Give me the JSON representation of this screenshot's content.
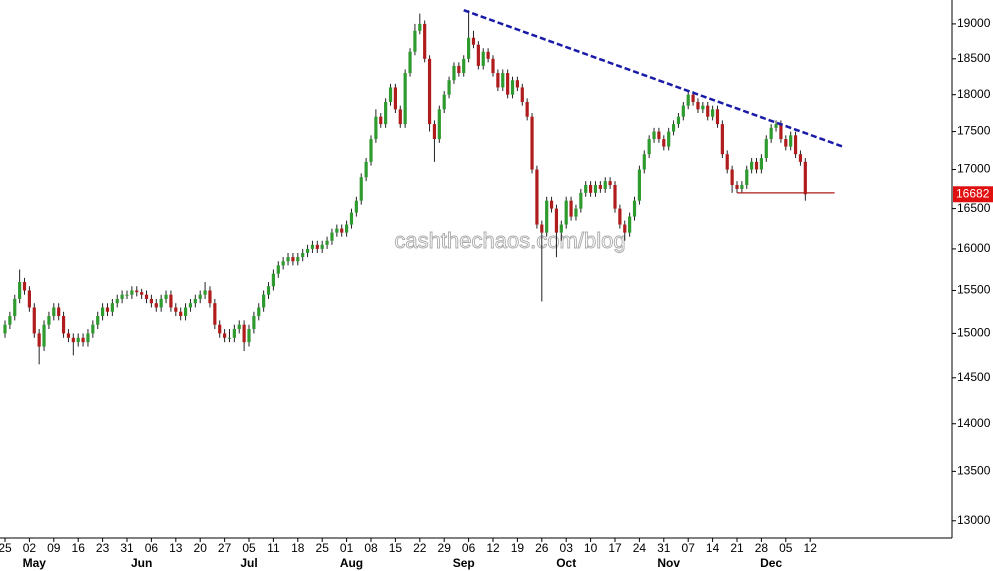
{
  "chart_data": {
    "type": "candlestick",
    "log_scale": true,
    "ylim": [
      12830,
      19350
    ],
    "yticks": [
      13000,
      13500,
      14000,
      14500,
      15000,
      15500,
      16000,
      16500,
      17000,
      17500,
      18000,
      18500,
      19000
    ],
    "up_color": "#2e9b2e",
    "down_color": "#b01c1c",
    "wick_color": "#222222",
    "watermark": "cashthechaos.com/blog",
    "last_value": 16682,
    "last_value_color": "#e01010",
    "trendlines": [
      {
        "color": "#1a1aa8",
        "style": "dashed",
        "points": [
          [
            94,
            19200
          ],
          [
            172,
            17293
          ]
        ]
      },
      {
        "color": "#b01c1c",
        "style": "solid",
        "points": [
          [
            150,
            16700
          ],
          [
            170,
            16700
          ]
        ]
      }
    ],
    "categories": [
      "25",
      null,
      null,
      null,
      null,
      "02",
      null,
      null,
      null,
      null,
      "09",
      null,
      null,
      null,
      null,
      "16",
      null,
      null,
      null,
      null,
      "23",
      null,
      null,
      null,
      null,
      "31",
      null,
      null,
      null,
      null,
      "06",
      null,
      null,
      null,
      null,
      "13",
      null,
      null,
      null,
      null,
      "20",
      null,
      null,
      null,
      null,
      "27",
      null,
      null,
      null,
      null,
      "05",
      null,
      null,
      null,
      null,
      "11",
      null,
      null,
      null,
      null,
      "18",
      null,
      null,
      null,
      null,
      "25",
      null,
      null,
      null,
      null,
      "01",
      null,
      null,
      null,
      null,
      "08",
      null,
      null,
      null,
      null,
      "15",
      null,
      null,
      null,
      null,
      "22",
      null,
      null,
      null,
      null,
      "29",
      null,
      null,
      null,
      null,
      "06",
      null,
      null,
      null,
      null,
      "12",
      null,
      null,
      null,
      null,
      "19",
      null,
      null,
      null,
      null,
      "26",
      null,
      null,
      null,
      null,
      "03",
      null,
      null,
      null,
      null,
      "10",
      null,
      null,
      null,
      null,
      "17",
      null,
      null,
      null,
      null,
      "24",
      null,
      null,
      null,
      null,
      "31",
      null,
      null,
      null,
      null,
      "07",
      null,
      null,
      null,
      null,
      "14",
      null,
      null,
      null,
      null,
      "21",
      null,
      null,
      null,
      null,
      "28",
      null,
      null,
      null,
      null,
      "05",
      null,
      null,
      null,
      null,
      "12",
      null,
      null,
      null,
      null
    ],
    "month_categories": [
      null,
      null,
      null,
      null,
      null,
      null,
      "May",
      null,
      null,
      null,
      null,
      null,
      null,
      null,
      null,
      null,
      null,
      null,
      null,
      null,
      null,
      null,
      null,
      null,
      null,
      null,
      null,
      null,
      "Jun",
      null,
      null,
      null,
      null,
      null,
      null,
      null,
      null,
      null,
      null,
      null,
      null,
      null,
      null,
      null,
      null,
      null,
      null,
      null,
      null,
      null,
      "Jul",
      null,
      null,
      null,
      null,
      null,
      null,
      null,
      null,
      null,
      null,
      null,
      null,
      null,
      null,
      null,
      null,
      null,
      null,
      null,
      null,
      "Aug",
      null,
      null,
      null,
      null,
      null,
      null,
      null,
      null,
      null,
      null,
      null,
      null,
      null,
      null,
      null,
      null,
      null,
      null,
      null,
      null,
      null,
      null,
      "Sep",
      null,
      null,
      null,
      null,
      null,
      null,
      null,
      null,
      null,
      null,
      null,
      null,
      null,
      null,
      null,
      null,
      null,
      null,
      null,
      null,
      "Oct",
      null,
      null,
      null,
      null,
      null,
      null,
      null,
      null,
      null,
      null,
      null,
      null,
      null,
      null,
      null,
      null,
      null,
      null,
      null,
      null,
      "Nov",
      null,
      null,
      null,
      null,
      null,
      null,
      null,
      null,
      null,
      null,
      null,
      null,
      null,
      null,
      null,
      null,
      null,
      null,
      null,
      null,
      "Dec",
      null,
      null,
      null,
      null,
      null,
      null,
      null,
      null,
      null,
      null
    ],
    "candles": [
      [
        15000,
        15150,
        14950,
        15100
      ],
      [
        15100,
        15250,
        15050,
        15200
      ],
      [
        15200,
        15450,
        15150,
        15400
      ],
      [
        15400,
        15750,
        15350,
        15600
      ],
      [
        15600,
        15650,
        15450,
        15500
      ],
      [
        15500,
        15550,
        15250,
        15300
      ],
      [
        15300,
        15350,
        14950,
        15000
      ],
      [
        15000,
        15050,
        14650,
        14850
      ],
      [
        14850,
        15150,
        14800,
        15100
      ],
      [
        15100,
        15250,
        15050,
        15200
      ],
      [
        15200,
        15350,
        15150,
        15300
      ],
      [
        15300,
        15350,
        15150,
        15200
      ],
      [
        15200,
        15250,
        14950,
        15000
      ],
      [
        15000,
        15050,
        14900,
        14950
      ],
      [
        14950,
        15000,
        14750,
        14900
      ],
      [
        14900,
        15000,
        14850,
        14950
      ],
      [
        14950,
        15000,
        14850,
        14900
      ],
      [
        14900,
        15050,
        14850,
        15000
      ],
      [
        15000,
        15150,
        14950,
        15100
      ],
      [
        15100,
        15250,
        15050,
        15200
      ],
      [
        15200,
        15350,
        15150,
        15300
      ],
      [
        15300,
        15350,
        15200,
        15250
      ],
      [
        15250,
        15400,
        15200,
        15350
      ],
      [
        15350,
        15450,
        15300,
        15400
      ],
      [
        15400,
        15500,
        15350,
        15450
      ],
      [
        15450,
        15500,
        15400,
        15450
      ],
      [
        15450,
        15550,
        15400,
        15500
      ],
      [
        15500,
        15550,
        15430,
        15480
      ],
      [
        15480,
        15520,
        15400,
        15450
      ],
      [
        15450,
        15500,
        15350,
        15400
      ],
      [
        15400,
        15450,
        15300,
        15350
      ],
      [
        15350,
        15400,
        15250,
        15300
      ],
      [
        15300,
        15450,
        15250,
        15400
      ],
      [
        15400,
        15500,
        15350,
        15450
      ],
      [
        15450,
        15500,
        15250,
        15300
      ],
      [
        15300,
        15350,
        15200,
        15250
      ],
      [
        15250,
        15300,
        15150,
        15200
      ],
      [
        15200,
        15350,
        15150,
        15300
      ],
      [
        15300,
        15400,
        15250,
        15350
      ],
      [
        15350,
        15450,
        15300,
        15400
      ],
      [
        15400,
        15500,
        15350,
        15450
      ],
      [
        15450,
        15600,
        15400,
        15500
      ],
      [
        15500,
        15550,
        15300,
        15350
      ],
      [
        15350,
        15400,
        15050,
        15100
      ],
      [
        15100,
        15150,
        14950,
        15000
      ],
      [
        15000,
        15050,
        14900,
        14950
      ],
      [
        14950,
        15050,
        14900,
        14950
      ],
      [
        14950,
        15100,
        14900,
        15050
      ],
      [
        15050,
        15150,
        15000,
        15100
      ],
      [
        15100,
        15150,
        14800,
        14900
      ],
      [
        14900,
        15100,
        14850,
        15050
      ],
      [
        15050,
        15250,
        15000,
        15200
      ],
      [
        15200,
        15350,
        15150,
        15300
      ],
      [
        15300,
        15500,
        15250,
        15450
      ],
      [
        15450,
        15600,
        15400,
        15550
      ],
      [
        15550,
        15750,
        15500,
        15700
      ],
      [
        15700,
        15850,
        15650,
        15800
      ],
      [
        15800,
        15900,
        15750,
        15850
      ],
      [
        15850,
        15950,
        15800,
        15900
      ],
      [
        15900,
        15950,
        15800,
        15850
      ],
      [
        15850,
        15950,
        15800,
        15900
      ],
      [
        15900,
        16000,
        15850,
        15950
      ],
      [
        15950,
        16050,
        15900,
        16000
      ],
      [
        16000,
        16100,
        15950,
        16050
      ],
      [
        16050,
        16100,
        15950,
        16000
      ],
      [
        16000,
        16100,
        15950,
        16050
      ],
      [
        16050,
        16150,
        16000,
        16100
      ],
      [
        16100,
        16250,
        16050,
        16200
      ],
      [
        16200,
        16300,
        16150,
        16250
      ],
      [
        16250,
        16300,
        16150,
        16200
      ],
      [
        16200,
        16350,
        16150,
        16300
      ],
      [
        16300,
        16500,
        16250,
        16450
      ],
      [
        16450,
        16650,
        16400,
        16600
      ],
      [
        16600,
        16950,
        16550,
        16900
      ],
      [
        16900,
        17150,
        16850,
        17100
      ],
      [
        17100,
        17450,
        17050,
        17400
      ],
      [
        17400,
        17800,
        17350,
        17700
      ],
      [
        17700,
        17750,
        17550,
        17600
      ],
      [
        17600,
        17950,
        17550,
        17900
      ],
      [
        17900,
        18150,
        17850,
        18100
      ],
      [
        18100,
        18150,
        17750,
        17800
      ],
      [
        17800,
        17850,
        17550,
        17600
      ],
      [
        17600,
        18350,
        17550,
        18300
      ],
      [
        18300,
        18650,
        18250,
        18600
      ],
      [
        18600,
        19000,
        18550,
        18900
      ],
      [
        18900,
        19150,
        18850,
        19000
      ],
      [
        19000,
        19050,
        18450,
        18500
      ],
      [
        18500,
        18550,
        17500,
        17600
      ],
      [
        17600,
        17650,
        17100,
        17400
      ],
      [
        17400,
        17850,
        17350,
        17800
      ],
      [
        17800,
        18050,
        17750,
        18000
      ],
      [
        18000,
        18250,
        17950,
        18200
      ],
      [
        18200,
        18450,
        18150,
        18400
      ],
      [
        18400,
        18450,
        18250,
        18300
      ],
      [
        18300,
        18550,
        18250,
        18500
      ],
      [
        18500,
        19200,
        18450,
        18800
      ],
      [
        18800,
        18900,
        18650,
        18700
      ],
      [
        18700,
        18750,
        18350,
        18400
      ],
      [
        18400,
        18650,
        18350,
        18600
      ],
      [
        18600,
        18650,
        18450,
        18500
      ],
      [
        18500,
        18550,
        18250,
        18300
      ],
      [
        18300,
        18350,
        18050,
        18100
      ],
      [
        18100,
        18350,
        18050,
        18300
      ],
      [
        18300,
        18350,
        17950,
        18000
      ],
      [
        18000,
        18250,
        17950,
        18200
      ],
      [
        18200,
        18250,
        18050,
        18100
      ],
      [
        18100,
        18150,
        17850,
        17900
      ],
      [
        17900,
        17950,
        17650,
        17700
      ],
      [
        17700,
        17750,
        16950,
        17000
      ],
      [
        17000,
        17050,
        16250,
        16300
      ],
      [
        16300,
        16350,
        15370,
        16200
      ],
      [
        16200,
        16650,
        16150,
        16600
      ],
      [
        16600,
        16650,
        16450,
        16500
      ],
      [
        16500,
        16550,
        15900,
        16200
      ],
      [
        16200,
        16350,
        16100,
        16300
      ],
      [
        16300,
        16650,
        16250,
        16600
      ],
      [
        16600,
        16650,
        16350,
        16400
      ],
      [
        16400,
        16550,
        16350,
        16500
      ],
      [
        16500,
        16750,
        16450,
        16700
      ],
      [
        16700,
        16850,
        16650,
        16800
      ],
      [
        16800,
        16850,
        16650,
        16700
      ],
      [
        16700,
        16850,
        16650,
        16800
      ],
      [
        16800,
        16850,
        16700,
        16750
      ],
      [
        16750,
        16900,
        16700,
        16850
      ],
      [
        16850,
        16900,
        16750,
        16800
      ],
      [
        16800,
        16850,
        16450,
        16500
      ],
      [
        16500,
        16550,
        16250,
        16300
      ],
      [
        16300,
        16350,
        16100,
        16200
      ],
      [
        16200,
        16450,
        16150,
        16400
      ],
      [
        16400,
        16650,
        16350,
        16600
      ],
      [
        16600,
        17050,
        16550,
        17000
      ],
      [
        17000,
        17250,
        16950,
        17200
      ],
      [
        17200,
        17450,
        17150,
        17400
      ],
      [
        17400,
        17550,
        17350,
        17500
      ],
      [
        17500,
        17550,
        17350,
        17400
      ],
      [
        17400,
        17450,
        17250,
        17300
      ],
      [
        17300,
        17550,
        17250,
        17500
      ],
      [
        17500,
        17650,
        17450,
        17600
      ],
      [
        17600,
        17750,
        17550,
        17700
      ],
      [
        17700,
        17900,
        17650,
        17850
      ],
      [
        17850,
        18050,
        17800,
        18000
      ],
      [
        18000,
        18050,
        17850,
        17900
      ],
      [
        17900,
        17950,
        17750,
        17800
      ],
      [
        17800,
        17900,
        17750,
        17850
      ],
      [
        17850,
        17900,
        17650,
        17700
      ],
      [
        17700,
        17850,
        17650,
        17800
      ],
      [
        17800,
        17850,
        17550,
        17600
      ],
      [
        17600,
        17650,
        17150,
        17200
      ],
      [
        17200,
        17250,
        16950,
        17000
      ],
      [
        17000,
        17050,
        16700,
        16800
      ],
      [
        16800,
        16850,
        16700,
        16750
      ],
      [
        16750,
        16850,
        16700,
        16800
      ],
      [
        16800,
        17050,
        16750,
        17000
      ],
      [
        17000,
        17150,
        16950,
        17100
      ],
      [
        17100,
        17150,
        16950,
        17000
      ],
      [
        17000,
        17200,
        16950,
        17150
      ],
      [
        17150,
        17450,
        17100,
        17400
      ],
      [
        17400,
        17600,
        17350,
        17550
      ],
      [
        17550,
        17650,
        17500,
        17600
      ],
      [
        17600,
        17650,
        17350,
        17400
      ],
      [
        17400,
        17450,
        17250,
        17300
      ],
      [
        17300,
        17500,
        17250,
        17450
      ],
      [
        17450,
        17500,
        17150,
        17200
      ],
      [
        17200,
        17250,
        17050,
        17100
      ],
      [
        17100,
        17150,
        16600,
        16682
      ],
      null,
      null,
      null,
      null,
      null
    ]
  }
}
